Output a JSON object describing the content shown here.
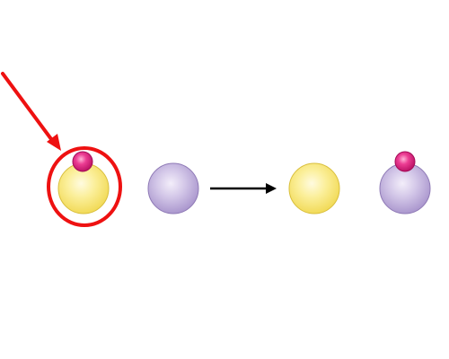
{
  "diagram": {
    "type": "reaction-scheme",
    "reactants": [
      {
        "kind": "large-sphere",
        "color": "yellow",
        "carries_small_sphere": true,
        "highlighted": true
      },
      {
        "kind": "large-sphere",
        "color": "lavender",
        "carries_small_sphere": false
      }
    ],
    "products": [
      {
        "kind": "large-sphere",
        "color": "yellow",
        "carries_small_sphere": false
      },
      {
        "kind": "large-sphere",
        "color": "lavender",
        "carries_small_sphere": true
      }
    ],
    "colors": {
      "yellow_fill": "#f6e46c",
      "yellow_highlight": "#fffbe0",
      "yellow_edge": "#d9bf3c",
      "lavender_fill": "#b6a3d6",
      "lavender_highlight": "#f3eefa",
      "lavender_edge": "#8f7ab6",
      "magenta_fill": "#e0197c",
      "magenta_highlight": "#ffb3d6",
      "magenta_edge": "#a40c57",
      "highlight_red": "#ee1111",
      "arrow_black": "#000000"
    }
  }
}
